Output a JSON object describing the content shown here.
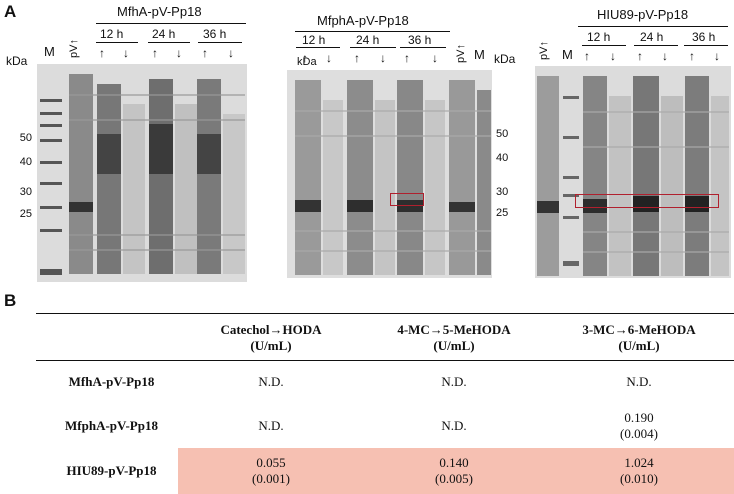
{
  "panel_a": {
    "letter": "A",
    "gel1": {
      "title": "MfhA-pV-Pp18",
      "marker_label": "M",
      "vector_label": "pV↑",
      "time_labels": [
        "12 h",
        "24 h",
        "36 h"
      ],
      "kda_label": "kDa",
      "mw_markers": [
        "50",
        "40",
        "30",
        "25"
      ]
    },
    "gel2": {
      "title": "MfphA-pV-Pp18",
      "time_labels": [
        "12 h",
        "24 h",
        "36 h"
      ],
      "vector_label": "pV↑",
      "marker_label": "M",
      "kda_label_inner": "kDa",
      "kda_label": "kDa",
      "mw_markers": [
        "50",
        "40",
        "30",
        "25"
      ]
    },
    "gel3": {
      "title": "HIU89-pV-Pp18",
      "vector_label": "pV↑",
      "marker_label": "M",
      "time_labels": [
        "12 h",
        "24 h",
        "36 h"
      ]
    },
    "arrow_up": "↑",
    "arrow_down": "↓",
    "highlight_color": "#b0202e"
  },
  "panel_b": {
    "letter": "B",
    "columns": [
      {
        "line1": "Catechol→HODA",
        "line2": "(U/mL)"
      },
      {
        "line1": "4-MC→5-MeHODA",
        "line2": "(U/mL)"
      },
      {
        "line1": "3-MC→6-MeHODA",
        "line2": "(U/mL)"
      }
    ],
    "rows": [
      {
        "label": "MfhA-pV-Pp18",
        "cells": [
          [
            "N.D.",
            ""
          ],
          [
            "N.D.",
            ""
          ],
          [
            "N.D.",
            ""
          ]
        ]
      },
      {
        "label": "MfphA-pV-Pp18",
        "cells": [
          [
            "N.D.",
            ""
          ],
          [
            "N.D.",
            ""
          ],
          [
            "0.190",
            "(0.004)"
          ]
        ]
      },
      {
        "label": "HIU89-pV-Pp18",
        "cells": [
          [
            "0.055",
            "(0.001)"
          ],
          [
            "0.140",
            "(0.005)"
          ],
          [
            "1.024",
            "(0.010)"
          ]
        ]
      }
    ],
    "highlight_color": "#f6c0b2"
  }
}
